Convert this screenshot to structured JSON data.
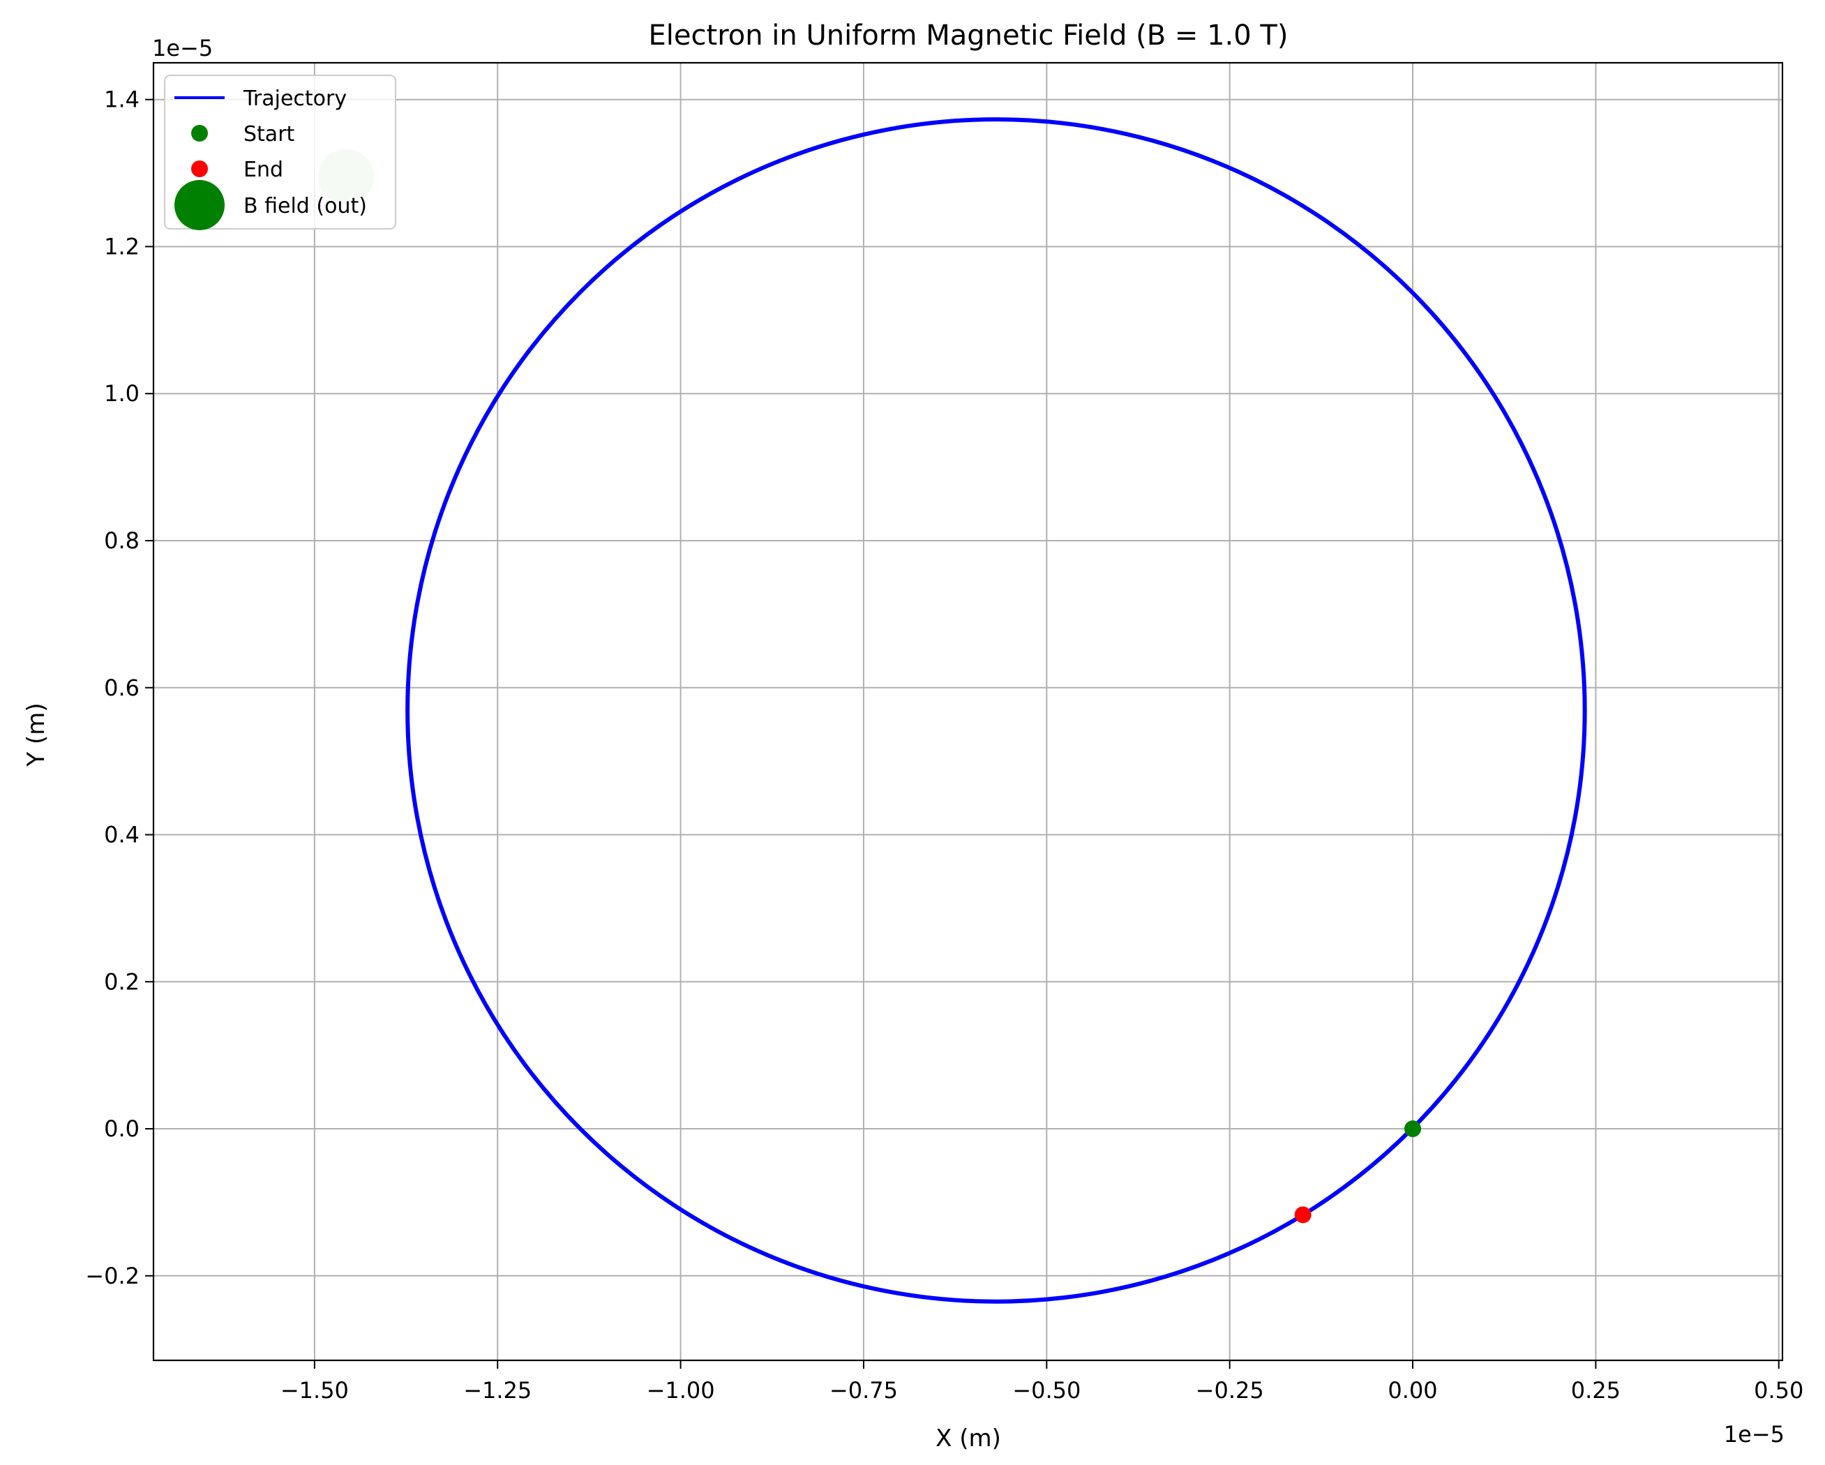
{
  "chart_data": {
    "type": "line",
    "title": "Electron in Uniform Magnetic Field (B = 1.0 T)",
    "xlabel": "X (m)",
    "ylabel": "Y (m)",
    "x_offset_text": "1e−5",
    "y_offset_text": "1e−5",
    "xlim": [
      -1.72,
      0.505
    ],
    "ylim": [
      -0.315,
      1.45
    ],
    "xticks": [
      -1.5,
      -1.25,
      -1.0,
      -0.75,
      -0.5,
      -0.25,
      0.0,
      0.25,
      0.5
    ],
    "xtick_labels": [
      "−1.50",
      "−1.25",
      "−1.00",
      "−0.75",
      "−0.50",
      "−0.25",
      "0.00",
      "0.25",
      "0.50"
    ],
    "yticks": [
      -0.2,
      0.0,
      0.2,
      0.4,
      0.6,
      0.8,
      1.0,
      1.2,
      1.4
    ],
    "ytick_labels": [
      "−0.2",
      "0.0",
      "0.2",
      "0.4",
      "0.6",
      "0.8",
      "1.0",
      "1.2",
      "1.4"
    ],
    "grid": true,
    "legend_position": "top-left",
    "series": [
      {
        "name": "Trajectory",
        "kind": "circle",
        "center": [
          -0.569,
          0.569
        ],
        "radius": 0.804,
        "color": "#0000ff"
      }
    ],
    "points": [
      {
        "name": "Start",
        "x": 0.0,
        "y": 0.0,
        "color": "#008000"
      },
      {
        "name": "End",
        "x": -0.15,
        "y": -0.117,
        "color": "#ff0000"
      }
    ],
    "b_field_marker": {
      "name": "B field (out)",
      "x": -1.457,
      "y": 1.295,
      "color": "#008000",
      "alpha": 0.2
    },
    "legend": [
      {
        "label": "Trajectory",
        "kind": "line",
        "color": "#0000ff"
      },
      {
        "label": "Start",
        "kind": "dot",
        "color": "#008000"
      },
      {
        "label": "End",
        "kind": "dot",
        "color": "#ff0000"
      },
      {
        "label": "B field (out)",
        "kind": "big-dot",
        "color": "#008000"
      }
    ]
  }
}
